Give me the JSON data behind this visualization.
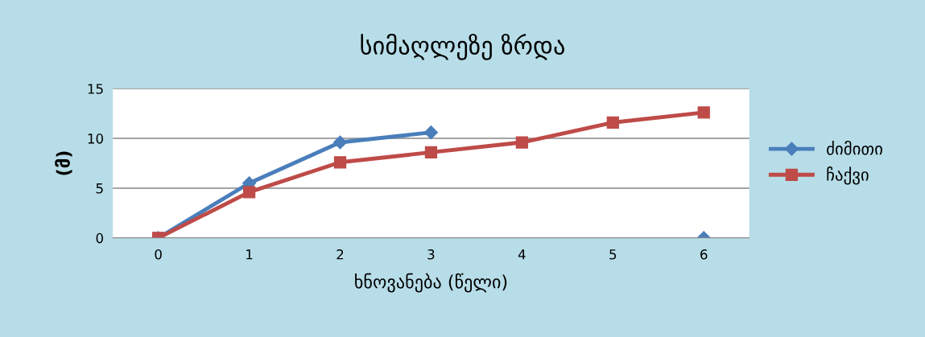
{
  "chart_data": {
    "type": "line",
    "title": "სიმაღლეზე ზრდა",
    "xlabel": "ხნოვანება (წელი)",
    "ylabel": "(მ)",
    "categories": [
      "0",
      "1",
      "2",
      "3",
      "4",
      "5",
      "6"
    ],
    "series": [
      {
        "name": "ძიმითი",
        "color": "#4a7ebb",
        "marker": "diamond",
        "values": [
          0,
          5.5,
          9.6,
          10.6,
          null,
          null,
          0
        ]
      },
      {
        "name": "ჩაქვი",
        "color": "#be4b48",
        "marker": "square",
        "values": [
          0,
          4.6,
          7.6,
          8.6,
          9.6,
          11.6,
          12.6
        ]
      }
    ],
    "ylim": [
      0,
      15
    ],
    "yticks": [
      0,
      5,
      10,
      15
    ],
    "grid": "y",
    "legend": "right"
  }
}
